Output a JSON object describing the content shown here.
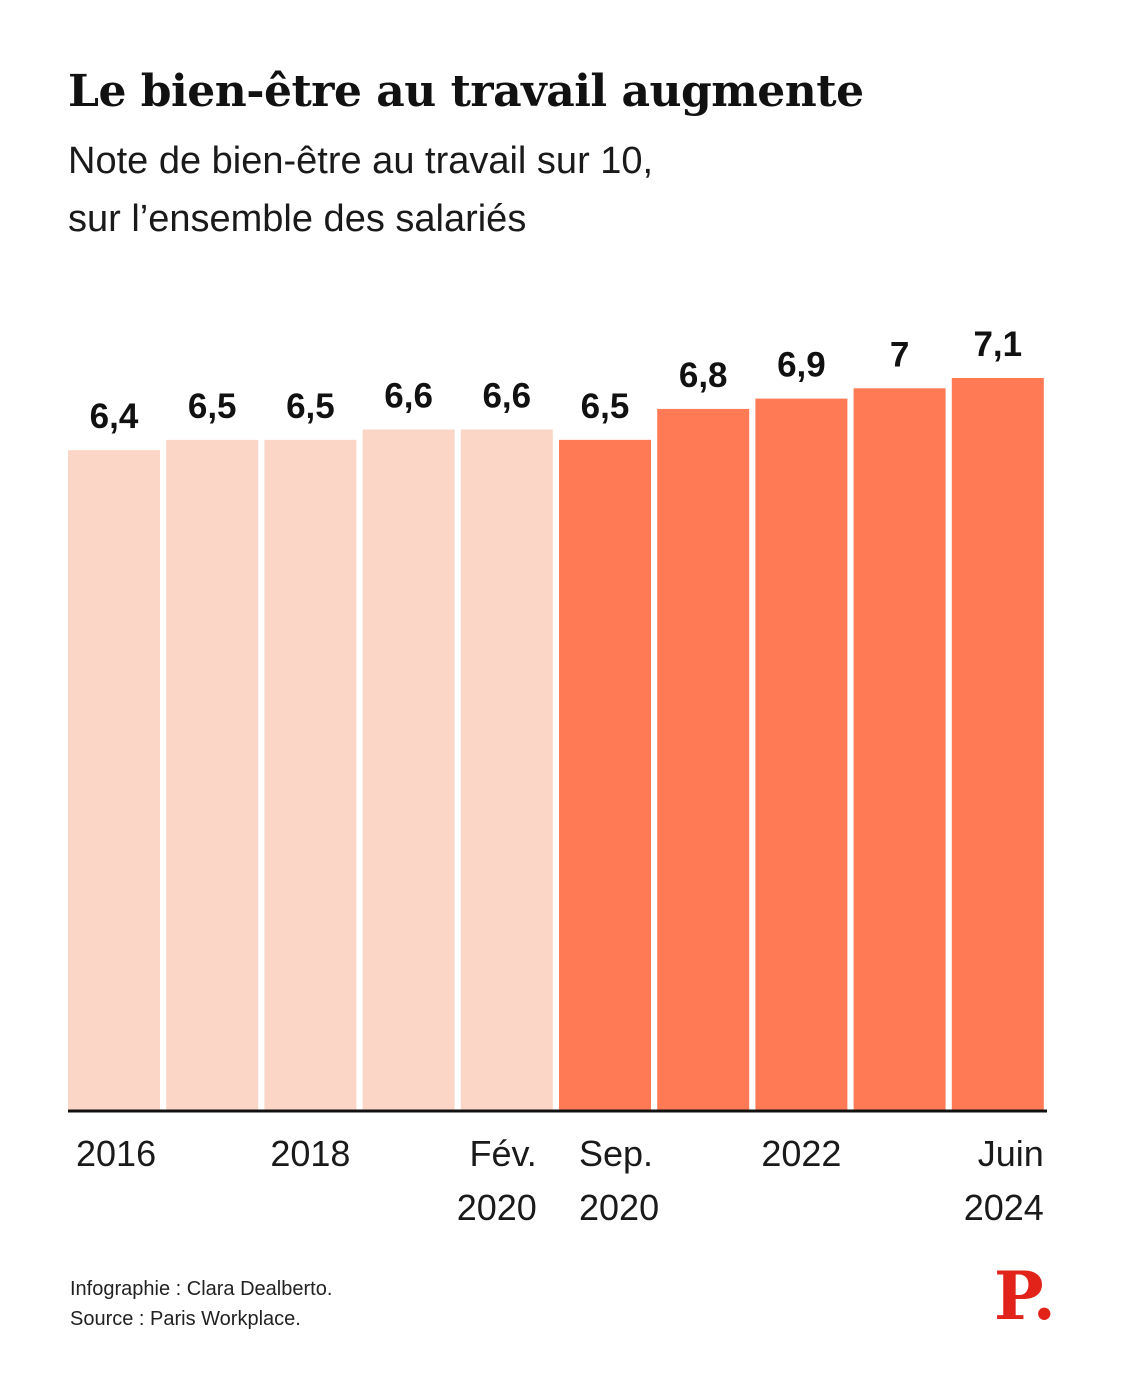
{
  "header": {
    "title": "Le bien-être au travail augmente",
    "subtitle_line1": "Note de bien-être au travail sur 10,",
    "subtitle_line2": "sur l’ensemble des salariés"
  },
  "footer": {
    "credit": "Infographie : Clara Dealberto.",
    "source": "Source : Paris Workplace."
  },
  "logo": {
    "text": "P."
  },
  "colors": {
    "light_bar": "#fbd5c5",
    "dark_bar": "#ff7a55",
    "axis": "#111111",
    "logo": "#e2231a"
  },
  "chart_data": {
    "type": "bar",
    "title": "Le bien-être au travail augmente",
    "subtitle": "Note de bien-être au travail sur 10, sur l’ensemble des salariés",
    "ylim": [
      0,
      10
    ],
    "grid": false,
    "values": [
      6.4,
      6.5,
      6.5,
      6.6,
      6.6,
      6.5,
      6.8,
      6.9,
      7,
      7.1
    ],
    "value_labels": [
      "6,4",
      "6,5",
      "6,5",
      "6,6",
      "6,6",
      "6,5",
      "6,8",
      "6,9",
      "7",
      "7,1"
    ],
    "highlight": [
      false,
      false,
      false,
      false,
      false,
      true,
      true,
      true,
      true,
      true
    ],
    "x_tick_labels": [
      [
        "2016"
      ],
      [],
      [
        "2018"
      ],
      [],
      [
        "Fév.",
        "2020"
      ],
      [
        "Sep.",
        "2020"
      ],
      [],
      [
        "2022"
      ],
      [],
      [
        "Juin",
        "2024"
      ]
    ]
  }
}
